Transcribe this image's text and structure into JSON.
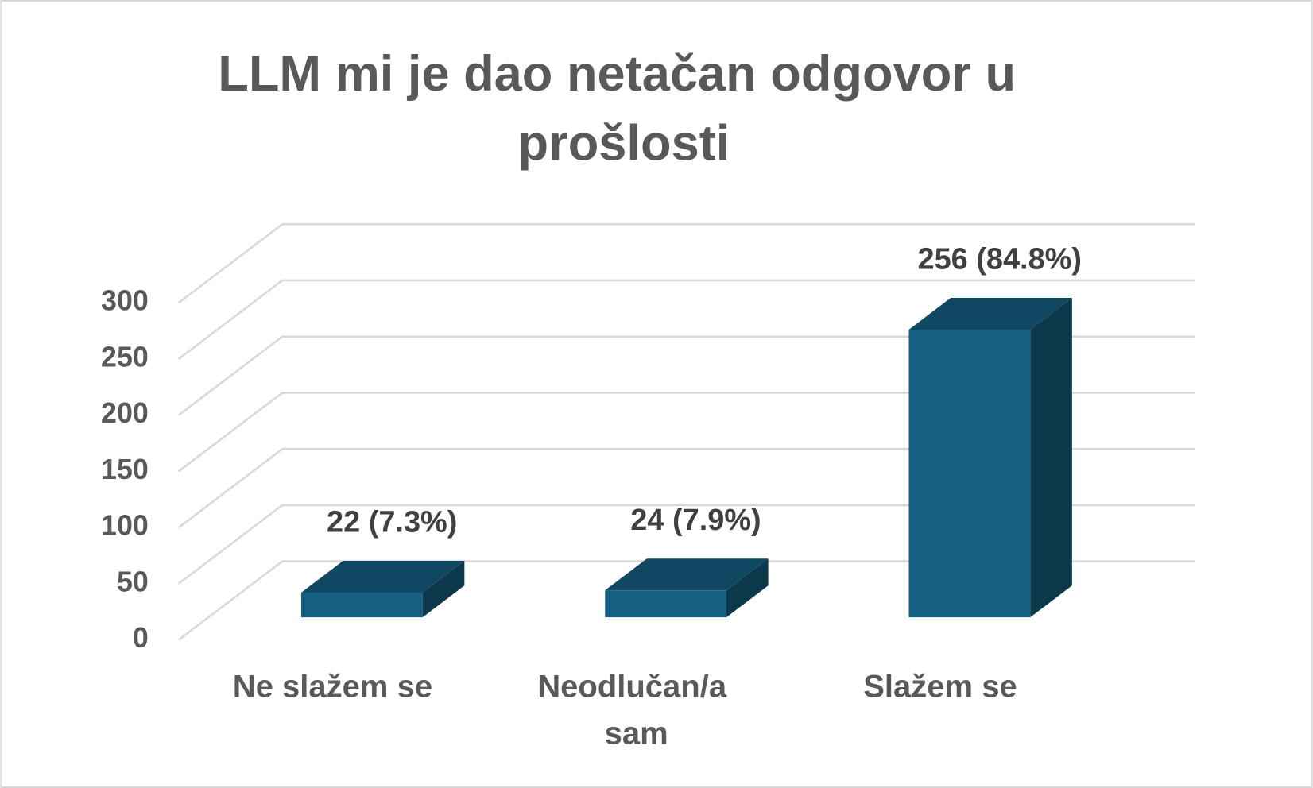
{
  "chart_data": {
    "type": "bar3d",
    "title": "LLM mi je dao netačan odgovor u prošlosti",
    "categories": [
      "Ne slažem se",
      "Neodlučan/a sam",
      "Slažem se"
    ],
    "values": [
      22,
      24,
      256
    ],
    "value_labels": [
      "22 (7.3%)",
      "24 (7.9%)",
      "256 (84.8%)"
    ],
    "color": "#156082",
    "ylim": [
      0,
      300
    ],
    "yticks": [
      0,
      50,
      100,
      150,
      200,
      250,
      300
    ],
    "grid": true
  }
}
